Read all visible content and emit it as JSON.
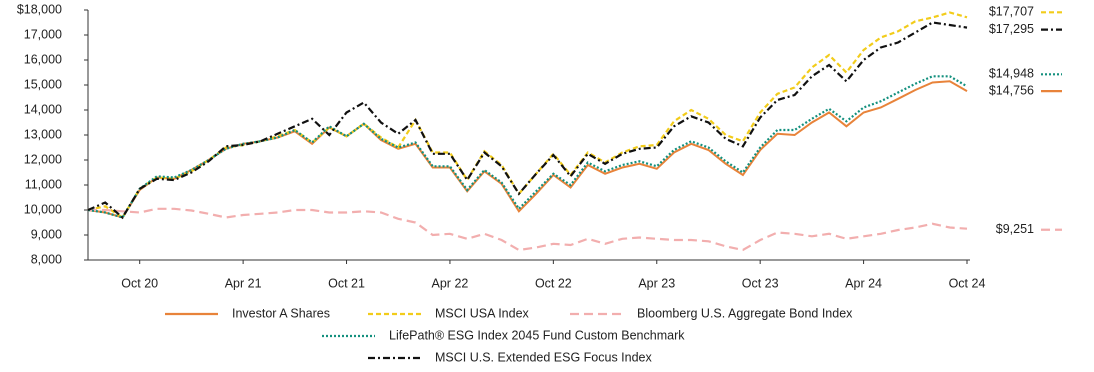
{
  "chart_data": {
    "type": "line",
    "categories": [
      null,
      null,
      null,
      "Oct 20",
      null,
      null,
      null,
      null,
      null,
      "Apr 21",
      null,
      null,
      null,
      null,
      null,
      "Oct 21",
      null,
      null,
      null,
      null,
      null,
      "Apr 22",
      null,
      null,
      null,
      null,
      null,
      "Oct 22",
      null,
      null,
      null,
      null,
      null,
      "Apr 23",
      null,
      null,
      null,
      null,
      null,
      "Oct 23",
      null,
      null,
      null,
      null,
      null,
      "Apr 24",
      null,
      null,
      null,
      null,
      null,
      "Oct 24"
    ],
    "ylim": [
      8000,
      18000
    ],
    "yticks": [
      {
        "value": 8000,
        "label": "8,000"
      },
      {
        "value": 9000,
        "label": "9,000"
      },
      {
        "value": 10000,
        "label": "10,000"
      },
      {
        "value": 11000,
        "label": "11,000"
      },
      {
        "value": 12000,
        "label": "12,000"
      },
      {
        "value": 13000,
        "label": "13,000"
      },
      {
        "value": 14000,
        "label": "14,000"
      },
      {
        "value": 15000,
        "label": "15,000"
      },
      {
        "value": 16000,
        "label": "16,000"
      },
      {
        "value": 17000,
        "label": "17,000"
      },
      {
        "value": 18000,
        "label": "$18,000"
      }
    ],
    "series": [
      {
        "name": "Investor A Shares",
        "color": "#e8833a",
        "style": "solid",
        "values": [
          10000,
          9900,
          9700,
          10800,
          11300,
          11250,
          11600,
          12000,
          12450,
          12650,
          12750,
          12900,
          13150,
          12650,
          13300,
          12950,
          13450,
          12800,
          12450,
          12650,
          11700,
          11700,
          10750,
          11550,
          11050,
          9950,
          10650,
          11400,
          10900,
          11800,
          11450,
          11700,
          11850,
          11650,
          12300,
          12650,
          12400,
          11850,
          11400,
          12400,
          13050,
          13000,
          13500,
          13900,
          13350,
          13900,
          14100,
          14450,
          14800,
          15100,
          15150,
          14756
        ],
        "value_labels": [
          null,
          null,
          null,
          null,
          null,
          null,
          null,
          null,
          null,
          null,
          null,
          null,
          null,
          null,
          null,
          null,
          null,
          null,
          null,
          null,
          null,
          null,
          null,
          null,
          null,
          null,
          null,
          null,
          null,
          null,
          null,
          null,
          null,
          null,
          null,
          null,
          null,
          null,
          null,
          null,
          null,
          null,
          null,
          null,
          null,
          null,
          null,
          null,
          null,
          null,
          null,
          "$14,756"
        ]
      },
      {
        "name": "MSCI USA Index",
        "color": "#f2cc1a",
        "style": "dashed",
        "values": [
          10000,
          10150,
          9700,
          10850,
          11300,
          11250,
          11550,
          12000,
          12500,
          12600,
          12750,
          12950,
          13200,
          12700,
          13300,
          12950,
          13450,
          12900,
          12500,
          13600,
          12300,
          12300,
          11200,
          12350,
          11800,
          10650,
          11450,
          12250,
          11400,
          12300,
          11900,
          12300,
          12550,
          12600,
          13550,
          14000,
          13650,
          13000,
          12750,
          13900,
          14650,
          14900,
          15700,
          16200,
          15500,
          16400,
          16900,
          17150,
          17550,
          17700,
          17900,
          17707
        ],
        "value_labels": [
          null,
          null,
          null,
          null,
          null,
          null,
          null,
          null,
          null,
          null,
          null,
          null,
          null,
          null,
          null,
          null,
          null,
          null,
          null,
          null,
          null,
          null,
          null,
          null,
          null,
          null,
          null,
          null,
          null,
          null,
          null,
          null,
          null,
          null,
          null,
          null,
          null,
          null,
          null,
          null,
          null,
          null,
          null,
          null,
          null,
          null,
          null,
          null,
          null,
          null,
          null,
          "$17,707"
        ]
      },
      {
        "name": "Bloomberg U.S. Aggregate Bond Index",
        "color": "#f2aeae",
        "style": "longdash",
        "values": [
          10000,
          10000,
          9950,
          9900,
          10050,
          10050,
          9980,
          9850,
          9700,
          9800,
          9850,
          9900,
          10000,
          10000,
          9900,
          9900,
          9950,
          9900,
          9650,
          9500,
          9000,
          9050,
          8850,
          9050,
          8800,
          8400,
          8500,
          8650,
          8600,
          8850,
          8650,
          8850,
          8900,
          8850,
          8800,
          8800,
          8750,
          8550,
          8400,
          8800,
          9100,
          9050,
          8950,
          9050,
          8850,
          8950,
          9050,
          9200,
          9300,
          9450,
          9300,
          9251
        ],
        "value_labels": [
          null,
          null,
          null,
          null,
          null,
          null,
          null,
          null,
          null,
          null,
          null,
          null,
          null,
          null,
          null,
          null,
          null,
          null,
          null,
          null,
          null,
          null,
          null,
          null,
          null,
          null,
          null,
          null,
          null,
          null,
          null,
          null,
          null,
          null,
          null,
          null,
          null,
          null,
          null,
          null,
          null,
          null,
          null,
          null,
          null,
          null,
          null,
          null,
          null,
          null,
          null,
          "$9,251"
        ]
      },
      {
        "name": "LifePath® ESG Index 2045 Fund Custom Benchmark",
        "color": "#13907e",
        "style": "dotted",
        "values": [
          10000,
          9900,
          9700,
          10850,
          11350,
          11300,
          11600,
          12000,
          12450,
          12650,
          12750,
          12900,
          13200,
          12700,
          13350,
          12950,
          13450,
          12850,
          12500,
          12700,
          11750,
          11750,
          10800,
          11600,
          11100,
          10050,
          10750,
          11450,
          11000,
          11900,
          11550,
          11800,
          11950,
          11750,
          12400,
          12750,
          12500,
          11950,
          11500,
          12500,
          13200,
          13200,
          13650,
          14050,
          13550,
          14100,
          14350,
          14700,
          15050,
          15350,
          15350,
          14948
        ],
        "value_labels": [
          null,
          null,
          null,
          null,
          null,
          null,
          null,
          null,
          null,
          null,
          null,
          null,
          null,
          null,
          null,
          null,
          null,
          null,
          null,
          null,
          null,
          null,
          null,
          null,
          null,
          null,
          null,
          null,
          null,
          null,
          null,
          null,
          null,
          null,
          null,
          null,
          null,
          null,
          null,
          null,
          null,
          null,
          null,
          null,
          null,
          null,
          null,
          null,
          null,
          null,
          null,
          "$14,948"
        ]
      },
      {
        "name": "MSCI U.S. Extended ESG Focus Index",
        "color": "#111111",
        "style": "dashdot",
        "values": [
          10000,
          10300,
          9700,
          10850,
          11250,
          11200,
          11500,
          11950,
          12550,
          12600,
          12750,
          13050,
          13350,
          13650,
          13000,
          13900,
          14300,
          13500,
          13050,
          13600,
          12250,
          12250,
          11200,
          12300,
          11750,
          10650,
          11450,
          12200,
          11350,
          12250,
          11850,
          12250,
          12450,
          12500,
          13350,
          13750,
          13500,
          12850,
          12550,
          13700,
          14400,
          14600,
          15350,
          15800,
          15150,
          16000,
          16500,
          16700,
          17100,
          17500,
          17400,
          17295
        ],
        "value_labels": [
          null,
          null,
          null,
          null,
          null,
          null,
          null,
          null,
          null,
          null,
          null,
          null,
          null,
          null,
          null,
          null,
          null,
          null,
          null,
          null,
          null,
          null,
          null,
          null,
          null,
          null,
          null,
          null,
          null,
          null,
          null,
          null,
          null,
          null,
          null,
          null,
          null,
          null,
          null,
          null,
          null,
          null,
          null,
          null,
          null,
          null,
          null,
          null,
          null,
          null,
          null,
          "$17,295"
        ]
      }
    ]
  }
}
